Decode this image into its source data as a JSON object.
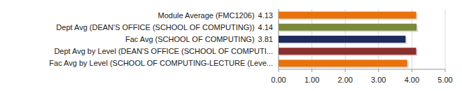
{
  "chart_data": {
    "type": "bar",
    "orientation": "horizontal",
    "categories": [
      "Module Average (FMC1206)",
      "Dept Avg (DEAN'S OFFICE (SCHOOL OF COMPUTING))",
      "Fac Avg (SCHOOL OF COMPUTING)",
      "Dept Avg by Level (DEAN'S OFFICE (SCHOOL OF COMPUTI...",
      "Fac Avg by Level (SCHOOL OF COMPUTING-LECTURE (Leve..."
    ],
    "values": [
      4.13,
      4.14,
      3.81,
      4.13,
      3.86
    ],
    "value_labels": [
      "4.13",
      "4.14",
      "3.81",
      null,
      null
    ],
    "data_labels": true,
    "colors": [
      "#e8720c",
      "#7a8a3a",
      "#1e2b5c",
      "#8c2f2f",
      "#e8720c"
    ],
    "xlim": [
      0,
      5
    ],
    "xticks": [
      {
        "value": 0,
        "label": "0.00"
      },
      {
        "value": 1,
        "label": "1.00"
      },
      {
        "value": 2,
        "label": "2.00"
      },
      {
        "value": 3,
        "label": "3.00"
      },
      {
        "value": 4,
        "label": "4.00"
      },
      {
        "value": 5,
        "label": "5.00"
      }
    ],
    "grid": true
  }
}
